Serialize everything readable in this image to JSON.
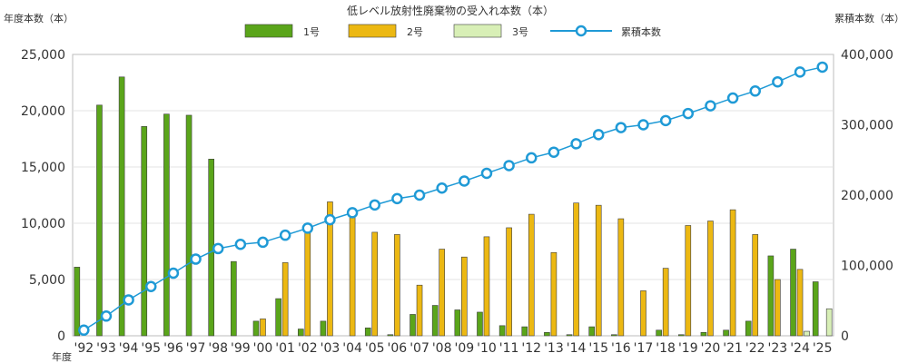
{
  "chart_data": {
    "type": "bar",
    "title": "低レベル放射性廃棄物の受入れ本数（本）",
    "ylabel": "年度本数（本）",
    "y2label": "累積本数（本）",
    "xlabel": "年度",
    "ylim": [
      0,
      25000
    ],
    "y2lim": [
      0,
      400000
    ],
    "y_ticks": [
      "0",
      "5,000",
      "10,000",
      "15,000",
      "20,000",
      "25,000"
    ],
    "y2_ticks": [
      "0",
      "100,000",
      "200,000",
      "300,000",
      "400,000"
    ],
    "categories": [
      "'92",
      "'93",
      "'94",
      "'95",
      "'96",
      "'97",
      "'98",
      "'99",
      "'00",
      "'01",
      "'02",
      "'03",
      "'04",
      "'05",
      "'06",
      "'07",
      "'08",
      "'09",
      "'10",
      "'11",
      "'12",
      "'13",
      "'14",
      "'15",
      "'16",
      "'17",
      "'18",
      "'19",
      "'20",
      "'21",
      "'22",
      "'23",
      "'24",
      "'25"
    ],
    "series": [
      {
        "name": "1号",
        "type": "bar",
        "color": "#5aa51a",
        "values": [
          6100,
          20500,
          23000,
          18600,
          19700,
          19600,
          15700,
          6600,
          1300,
          3300,
          600,
          1300,
          0,
          700,
          100,
          1900,
          2700,
          2300,
          2100,
          900,
          800,
          300,
          100,
          800,
          100,
          0,
          500,
          100,
          300,
          500,
          1300,
          7100,
          7700,
          4800
        ]
      },
      {
        "name": "2号",
        "type": "bar",
        "color": "#ecb812",
        "values": [
          0,
          0,
          0,
          0,
          0,
          0,
          0,
          0,
          1500,
          6500,
          9200,
          11900,
          10600,
          9200,
          9000,
          4500,
          7700,
          7000,
          8800,
          9600,
          10800,
          7400,
          11800,
          11600,
          10400,
          4000,
          6000,
          9800,
          10200,
          11200,
          9000,
          5000,
          5900,
          0
        ]
      },
      {
        "name": "3号",
        "type": "bar",
        "color": "#d8efb6",
        "values": [
          0,
          0,
          0,
          0,
          0,
          0,
          0,
          0,
          0,
          0,
          0,
          0,
          0,
          0,
          0,
          0,
          0,
          0,
          0,
          0,
          0,
          0,
          0,
          0,
          0,
          0,
          0,
          0,
          0,
          0,
          0,
          0,
          400,
          2400
        ]
      },
      {
        "name": "累積本数",
        "type": "line",
        "axis": "right",
        "color": "#1f9ad6",
        "values": [
          8000,
          28000,
          51000,
          70000,
          89000,
          109000,
          124000,
          130000,
          133000,
          143000,
          153000,
          165000,
          175000,
          186000,
          195000,
          200000,
          210000,
          220000,
          231000,
          242000,
          253000,
          261000,
          273000,
          286000,
          296000,
          300000,
          306000,
          316000,
          327000,
          338000,
          348000,
          361000,
          375000,
          382000
        ]
      }
    ],
    "legend": "top-center",
    "grid": true
  }
}
